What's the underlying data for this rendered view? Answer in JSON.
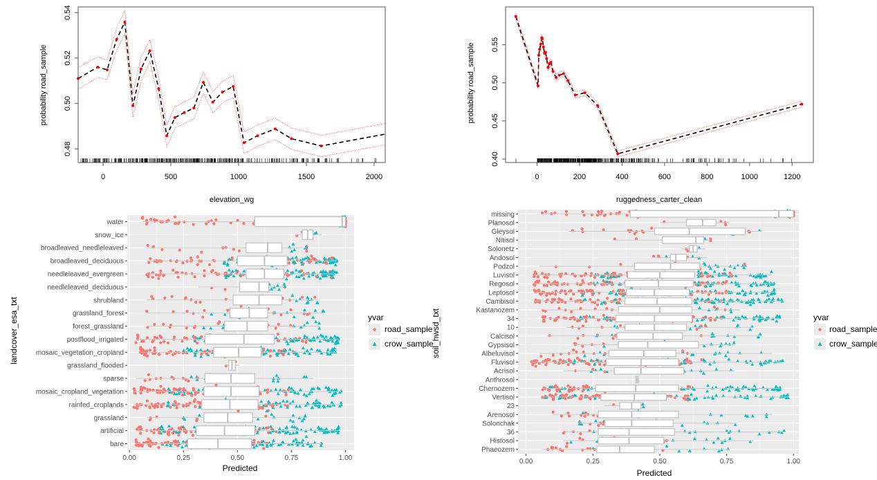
{
  "chart_data": [
    {
      "id": "pd_elevation",
      "type": "line",
      "title": "",
      "xlabel": "elevation_wg",
      "ylabel": "probability road_sample",
      "xlim": [
        -184,
        2082
      ],
      "ylim": [
        0.474,
        0.5425
      ],
      "xticks": [
        0,
        500,
        1000,
        1500,
        2000
      ],
      "yticks": [
        0.48,
        0.5,
        0.52,
        0.54
      ],
      "ytick_labels": [
        "0.48",
        "0.50",
        "0.52",
        "0.54"
      ],
      "rug": true,
      "series": [
        {
          "name": "estimate",
          "style": "dashed-black",
          "x": [
            -184,
            -40,
            30,
            100,
            160,
            220,
            280,
            345,
            410,
            470,
            530,
            600,
            670,
            740,
            810,
            880,
            960,
            1040,
            1140,
            1270,
            1390,
            1610,
            2082
          ],
          "y": [
            0.511,
            0.516,
            0.5148,
            0.5282,
            0.5358,
            0.499,
            0.5152,
            0.5232,
            0.5065,
            0.4858,
            0.4938,
            0.496,
            0.498,
            0.5093,
            0.5006,
            0.505,
            0.5075,
            0.4827,
            0.4858,
            0.4888,
            0.4845,
            0.4813,
            0.4865
          ]
        },
        {
          "name": "upper",
          "style": "dotted-red",
          "x": [
            -184,
            -40,
            30,
            100,
            160,
            220,
            280,
            345,
            410,
            470,
            530,
            600,
            670,
            740,
            810,
            880,
            960,
            1040,
            1140,
            1270,
            1390,
            1610,
            2082
          ],
          "y": [
            0.5158,
            0.5205,
            0.519,
            0.533,
            0.541,
            0.504,
            0.5205,
            0.528,
            0.5115,
            0.4905,
            0.4985,
            0.5008,
            0.5028,
            0.514,
            0.5053,
            0.5098,
            0.5123,
            0.4875,
            0.4905,
            0.4935,
            0.4892,
            0.486,
            0.4912
          ]
        },
        {
          "name": "lower",
          "style": "dotted-red",
          "x": [
            -184,
            -40,
            30,
            100,
            160,
            220,
            280,
            345,
            410,
            470,
            530,
            600,
            670,
            740,
            810,
            880,
            960,
            1040,
            1140,
            1270,
            1390,
            1610,
            2082
          ],
          "y": [
            0.5062,
            0.5115,
            0.5105,
            0.5234,
            0.5306,
            0.494,
            0.5099,
            0.5184,
            0.5015,
            0.4811,
            0.4891,
            0.4912,
            0.4932,
            0.5046,
            0.4959,
            0.5002,
            0.5027,
            0.4779,
            0.4811,
            0.4841,
            0.4798,
            0.4766,
            0.4818
          ]
        }
      ],
      "points": {
        "x": [
          -184,
          -40,
          30,
          100,
          160,
          220,
          280,
          345,
          410,
          470,
          530,
          600,
          670,
          740,
          810,
          880,
          960,
          1040,
          1140,
          1270,
          1390,
          1610
        ],
        "color": "#ff0000"
      }
    },
    {
      "id": "pd_ruggedness",
      "type": "line",
      "title": "",
      "xlabel": "ruggedness_carter_clean",
      "ylabel": "probability road_sample",
      "xlim": [
        -148,
        1300
      ],
      "ylim": [
        0.3955,
        0.5995
      ],
      "xticks": [
        0,
        200,
        400,
        600,
        800,
        1000,
        1200
      ],
      "yticks": [
        0.4,
        0.45,
        0.5,
        0.55
      ],
      "ytick_labels": [
        "0.40",
        "0.45",
        "0.50",
        "0.55"
      ],
      "rug": true,
      "series": [
        {
          "name": "estimate",
          "style": "dashed-black",
          "x": [
            -100,
            5,
            8,
            12,
            18,
            22,
            25,
            30,
            35,
            40,
            45,
            52,
            58,
            65,
            75,
            90,
            105,
            125,
            145,
            180,
            225,
            285,
            380,
            1245
          ],
          "y": [
            0.587,
            0.496,
            0.536,
            0.544,
            0.551,
            0.559,
            0.558,
            0.547,
            0.539,
            0.54,
            0.532,
            0.52,
            0.525,
            0.527,
            0.515,
            0.507,
            0.51,
            0.512,
            0.503,
            0.484,
            0.487,
            0.47,
            0.407,
            0.472
          ]
        },
        {
          "name": "upper",
          "style": "dotted-red",
          "x": [
            -100,
            5,
            8,
            12,
            18,
            22,
            25,
            30,
            35,
            40,
            45,
            52,
            58,
            65,
            75,
            90,
            105,
            125,
            145,
            180,
            225,
            285,
            380,
            1245
          ],
          "y": [
            0.591,
            0.5,
            0.54,
            0.548,
            0.555,
            0.563,
            0.562,
            0.551,
            0.543,
            0.544,
            0.536,
            0.524,
            0.529,
            0.531,
            0.519,
            0.511,
            0.514,
            0.516,
            0.507,
            0.488,
            0.491,
            0.474,
            0.411,
            0.476
          ]
        },
        {
          "name": "lower",
          "style": "dotted-red",
          "x": [
            -100,
            5,
            8,
            12,
            18,
            22,
            25,
            30,
            35,
            40,
            45,
            52,
            58,
            65,
            75,
            90,
            105,
            125,
            145,
            180,
            225,
            285,
            380,
            1245
          ],
          "y": [
            0.583,
            0.492,
            0.532,
            0.54,
            0.547,
            0.555,
            0.554,
            0.543,
            0.535,
            0.536,
            0.528,
            0.516,
            0.521,
            0.523,
            0.511,
            0.503,
            0.506,
            0.508,
            0.499,
            0.48,
            0.483,
            0.466,
            0.403,
            0.468
          ]
        }
      ],
      "points": {
        "x": [
          -100,
          5,
          8,
          12,
          18,
          22,
          25,
          30,
          35,
          40,
          45,
          52,
          58,
          65,
          75,
          90,
          105,
          125,
          145,
          180,
          225,
          285,
          380,
          1245
        ],
        "color": "#ff0000"
      }
    },
    {
      "id": "box_landcover",
      "type": "boxplot",
      "xlabel": "Predicted",
      "ylabel": "landcover_esa_txt",
      "xlim": [
        -0.01,
        1.04
      ],
      "xticks": [
        0.0,
        0.25,
        0.5,
        0.75,
        1.0
      ],
      "xtick_labels": [
        "0.00",
        "0.25",
        "0.50",
        "0.75",
        "1.00"
      ],
      "legend": {
        "title": "yvar",
        "position": "right",
        "entries": [
          {
            "label": "road_sample",
            "shape": "circle",
            "color": "#F8766D"
          },
          {
            "label": "crow_sample",
            "shape": "triangle",
            "color": "#00BFC4"
          }
        ]
      },
      "categories": [
        "water",
        "snow_ice",
        "broadleaved_needleleaved",
        "broadleaved_deciduous",
        "needleleaved_evergreen",
        "needleleaved_deciduous",
        "shrubland",
        "grassland_forest",
        "forest_grassland",
        "postflood_irrigated",
        "mosaic_vegetation_cropland",
        "grassland_flooded",
        "sparse",
        "mosaic_cropland_vegetation",
        "rainfed_croplands",
        "grassland",
        "artificial",
        "bare"
      ],
      "boxes": [
        {
          "q1": 0.58,
          "median": 0.985,
          "q3": 1.0,
          "lo": 0.06,
          "hi": 1.0,
          "spread": 0.9
        },
        {
          "q1": 0.8,
          "median": 0.825,
          "q3": 0.85,
          "lo": 0.77,
          "hi": 0.89,
          "spread": 0.1
        },
        {
          "q1": 0.54,
          "median": 0.64,
          "q3": 0.705,
          "lo": 0.08,
          "hi": 0.82,
          "spread": 0.8
        },
        {
          "q1": 0.5,
          "median": 0.625,
          "q3": 0.73,
          "lo": 0.08,
          "hi": 0.96,
          "spread": 0.9
        },
        {
          "q1": 0.54,
          "median": 0.625,
          "q3": 0.715,
          "lo": 0.08,
          "hi": 0.96,
          "spread": 0.9
        },
        {
          "q1": 0.51,
          "median": 0.6,
          "q3": 0.645,
          "lo": 0.32,
          "hi": 0.72,
          "spread": 0.4
        },
        {
          "q1": 0.48,
          "median": 0.6,
          "q3": 0.705,
          "lo": 0.08,
          "hi": 0.88,
          "spread": 0.85
        },
        {
          "q1": 0.465,
          "median": 0.555,
          "q3": 0.64,
          "lo": 0.08,
          "hi": 0.9,
          "spread": 0.85
        },
        {
          "q1": 0.44,
          "median": 0.545,
          "q3": 0.64,
          "lo": 0.08,
          "hi": 0.88,
          "spread": 0.85
        },
        {
          "q1": 0.35,
          "median": 0.53,
          "q3": 0.67,
          "lo": 0.03,
          "hi": 0.97,
          "spread": 0.95
        },
        {
          "q1": 0.39,
          "median": 0.505,
          "q3": 0.61,
          "lo": 0.05,
          "hi": 0.96,
          "spread": 0.9
        },
        {
          "q1": 0.46,
          "median": 0.475,
          "q3": 0.49,
          "lo": 0.44,
          "hi": 0.51,
          "spread": 0.08
        },
        {
          "q1": 0.35,
          "median": 0.47,
          "q3": 0.58,
          "lo": 0.03,
          "hi": 0.85,
          "spread": 0.85
        },
        {
          "q1": 0.345,
          "median": 0.47,
          "q3": 0.6,
          "lo": 0.02,
          "hi": 0.98,
          "spread": 0.95
        },
        {
          "q1": 0.335,
          "median": 0.465,
          "q3": 0.595,
          "lo": 0.02,
          "hi": 0.98,
          "spread": 0.95
        },
        {
          "q1": 0.345,
          "median": 0.455,
          "q3": 0.57,
          "lo": 0.08,
          "hi": 0.82,
          "spread": 0.8
        },
        {
          "q1": 0.31,
          "median": 0.44,
          "q3": 0.58,
          "lo": 0.03,
          "hi": 0.97,
          "spread": 0.95
        },
        {
          "q1": 0.27,
          "median": 0.41,
          "q3": 0.565,
          "lo": 0.03,
          "hi": 0.89,
          "spread": 0.9
        }
      ]
    },
    {
      "id": "box_soil",
      "type": "boxplot",
      "xlabel": "Predicted",
      "ylabel": "soil_hwsd_txt",
      "xlim": [
        -0.03,
        1.02
      ],
      "xticks": [
        0.0,
        0.25,
        0.5,
        0.75,
        1.0
      ],
      "xtick_labels": [
        "0.00",
        "0.25",
        "0.50",
        "0.75",
        "1.00"
      ],
      "legend": {
        "title": "yvar",
        "position": "right",
        "entries": [
          {
            "label": "road_sample",
            "shape": "circle",
            "color": "#F8766D"
          },
          {
            "label": "crow_sample",
            "shape": "triangle",
            "color": "#00BFC4"
          }
        ]
      },
      "categories": [
        "missing",
        "Planosol",
        "Gleysol",
        "Nitisol",
        "Solonetz",
        "Andosol",
        "Podzol",
        "Luvisol",
        "Regosol",
        "Leptosol",
        "Cambisol",
        "Kastanozem",
        "34",
        "10",
        "Calcisol",
        "Gypsisol",
        "Albeluvisol",
        "Fluvisol",
        "Acrisol",
        "Anthrosol",
        "Chernozem",
        "Vertisol",
        "23",
        "Arenosol",
        "Solonchak",
        "36",
        "Histosol",
        "Phaeozem"
      ],
      "boxes": [
        {
          "q1": 0.39,
          "median": 0.945,
          "q3": 1.0,
          "lo": 0.06,
          "hi": 1.0,
          "spread": 0.95
        },
        {
          "q1": 0.6,
          "median": 0.66,
          "q3": 0.71,
          "lo": 0.5,
          "hi": 0.76,
          "spread": 0.2
        },
        {
          "q1": 0.48,
          "median": 0.61,
          "q3": 0.82,
          "lo": 0.16,
          "hi": 0.88,
          "spread": 0.7
        },
        {
          "q1": 0.51,
          "median": 0.635,
          "q3": 0.665,
          "lo": 0.33,
          "hi": 0.69,
          "spread": 0.3
        },
        {
          "q1": 0.61,
          "median": 0.625,
          "q3": 0.64,
          "lo": 0.58,
          "hi": 0.67,
          "spread": 0.1
        },
        {
          "q1": 0.54,
          "median": 0.56,
          "q3": 0.6,
          "lo": 0.47,
          "hi": 0.68,
          "spread": 0.2
        },
        {
          "q1": 0.405,
          "median": 0.54,
          "q3": 0.65,
          "lo": 0.05,
          "hi": 0.82,
          "spread": 0.8
        },
        {
          "q1": 0.38,
          "median": 0.5,
          "q3": 0.63,
          "lo": 0.03,
          "hi": 0.92,
          "spread": 0.9
        },
        {
          "q1": 0.37,
          "median": 0.495,
          "q3": 0.625,
          "lo": 0.03,
          "hi": 0.93,
          "spread": 0.9
        },
        {
          "q1": 0.375,
          "median": 0.48,
          "q3": 0.61,
          "lo": 0.03,
          "hi": 0.93,
          "spread": 0.9
        },
        {
          "q1": 0.37,
          "median": 0.49,
          "q3": 0.62,
          "lo": 0.03,
          "hi": 0.96,
          "spread": 0.9
        },
        {
          "q1": 0.345,
          "median": 0.5,
          "q3": 0.62,
          "lo": 0.06,
          "hi": 0.8,
          "spread": 0.8
        },
        {
          "q1": 0.335,
          "median": 0.48,
          "q3": 0.62,
          "lo": 0.06,
          "hi": 0.95,
          "spread": 0.9
        },
        {
          "q1": 0.37,
          "median": 0.48,
          "q3": 0.6,
          "lo": 0.15,
          "hi": 0.85,
          "spread": 0.7
        },
        {
          "q1": 0.34,
          "median": 0.475,
          "q3": 0.585,
          "lo": 0.08,
          "hi": 0.88,
          "spread": 0.8
        },
        {
          "q1": 0.345,
          "median": 0.455,
          "q3": 0.645,
          "lo": 0.18,
          "hi": 0.78,
          "spread": 0.6
        },
        {
          "q1": 0.31,
          "median": 0.44,
          "q3": 0.56,
          "lo": 0.05,
          "hi": 0.92,
          "spread": 0.85
        },
        {
          "q1": 0.3,
          "median": 0.43,
          "q3": 0.57,
          "lo": 0.02,
          "hi": 0.96,
          "spread": 0.95
        },
        {
          "q1": 0.33,
          "median": 0.43,
          "q3": 0.59,
          "lo": 0.14,
          "hi": 0.78,
          "spread": 0.65
        },
        {
          "q1": 0.41,
          "median": 0.415,
          "q3": 0.42,
          "lo": 0.41,
          "hi": 0.42,
          "spread": 0.02
        },
        {
          "q1": 0.26,
          "median": 0.41,
          "q3": 0.57,
          "lo": 0.06,
          "hi": 0.95,
          "spread": 0.9
        },
        {
          "q1": 0.28,
          "median": 0.405,
          "q3": 0.525,
          "lo": 0.06,
          "hi": 0.98,
          "spread": 0.92
        },
        {
          "q1": 0.35,
          "median": 0.395,
          "q3": 0.43,
          "lo": 0.29,
          "hi": 0.44,
          "spread": 0.15
        },
        {
          "q1": 0.27,
          "median": 0.395,
          "q3": 0.57,
          "lo": 0.1,
          "hi": 0.92,
          "spread": 0.85
        },
        {
          "q1": 0.295,
          "median": 0.395,
          "q3": 0.55,
          "lo": 0.2,
          "hi": 0.79,
          "spread": 0.6
        },
        {
          "q1": 0.27,
          "median": 0.385,
          "q3": 0.555,
          "lo": 0.14,
          "hi": 0.97,
          "spread": 0.85
        },
        {
          "q1": 0.27,
          "median": 0.385,
          "q3": 0.515,
          "lo": 0.14,
          "hi": 0.85,
          "spread": 0.75
        },
        {
          "q1": 0.265,
          "median": 0.35,
          "q3": 0.48,
          "lo": 0.06,
          "hi": 0.76,
          "spread": 0.7
        }
      ]
    }
  ]
}
